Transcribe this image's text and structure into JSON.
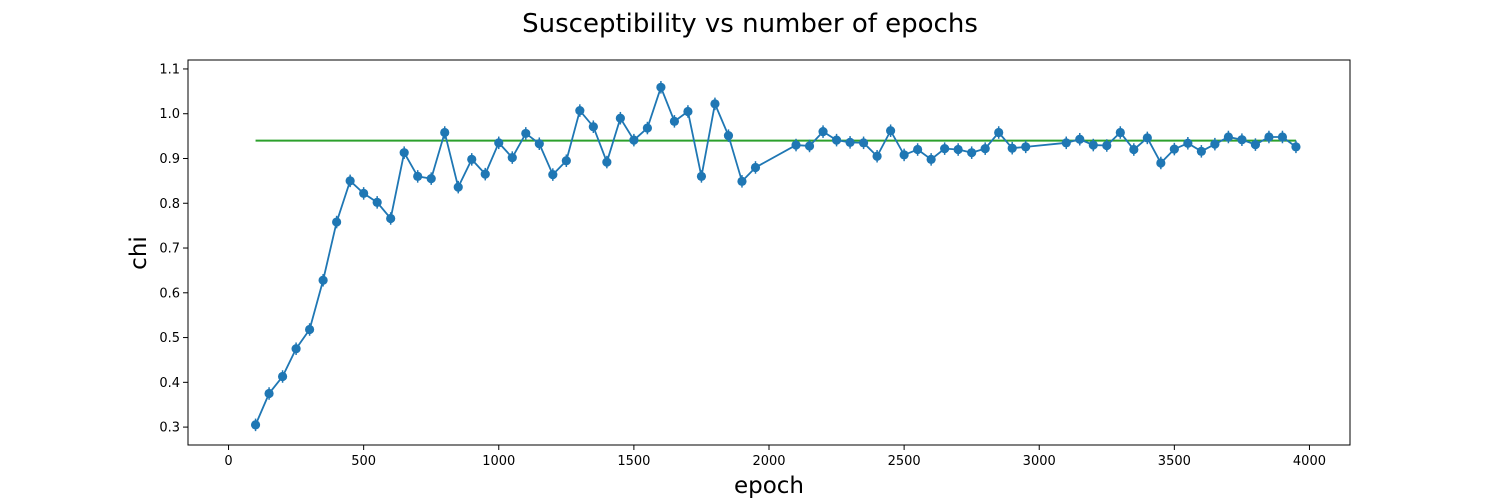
{
  "chart_data": {
    "type": "line",
    "title": "Susceptibility vs number of epochs",
    "xlabel": "epoch",
    "ylabel": "chi",
    "xlim": [
      -150,
      4150
    ],
    "ylim": [
      0.26,
      1.12
    ],
    "xticks": [
      0,
      500,
      1000,
      1500,
      2000,
      2500,
      3000,
      3500,
      4000
    ],
    "yticks": [
      0.3,
      0.4,
      0.5,
      0.6,
      0.7,
      0.8,
      0.9,
      1.0,
      1.1
    ],
    "xtick_labels": [
      "0",
      "500",
      "1000",
      "1500",
      "2000",
      "2500",
      "3000",
      "3500",
      "4000"
    ],
    "ytick_labels": [
      "0.3",
      "0.4",
      "0.5",
      "0.6",
      "0.7",
      "0.8",
      "0.9",
      "1.0",
      "1.1"
    ],
    "grid": false,
    "legend": "none",
    "colors": {
      "series": "#1f77b4",
      "reference": "#2ca02c"
    },
    "series": [
      {
        "x": [
          100,
          150,
          200,
          250,
          300,
          350,
          400,
          450,
          500,
          550,
          600,
          650,
          700,
          750,
          800,
          850,
          900,
          950,
          1000,
          1050,
          1100,
          1150,
          1200,
          1250,
          1300,
          1350,
          1400,
          1450,
          1500,
          1550,
          1600,
          1650,
          1700,
          1750,
          1800,
          1850,
          1900,
          1950,
          2100,
          2150,
          2200,
          2250,
          2300,
          2350,
          2400,
          2450,
          2500,
          2550,
          2600,
          2650,
          2700,
          2750,
          2800,
          2850,
          2900,
          2950,
          3100,
          3150,
          3200,
          3250,
          3300,
          3350,
          3400,
          3450,
          3500,
          3550,
          3600,
          3650,
          3700,
          3750,
          3800,
          3850,
          3900,
          3950
        ],
        "y": [
          0.305,
          0.375,
          0.413,
          0.475,
          0.518,
          0.628,
          0.758,
          0.85,
          0.822,
          0.802,
          0.766,
          0.913,
          0.86,
          0.855,
          0.958,
          0.836,
          0.898,
          0.865,
          0.935,
          0.902,
          0.956,
          0.933,
          0.864,
          0.895,
          1.007,
          0.971,
          0.892,
          0.99,
          0.941,
          0.968,
          1.059,
          0.983,
          1.005,
          0.86,
          1.022,
          0.951,
          0.849,
          0.88,
          0.93,
          0.928,
          0.96,
          0.941,
          0.936,
          0.935,
          0.905,
          0.962,
          0.908,
          0.92,
          0.898,
          0.922,
          0.92,
          0.913,
          0.922,
          0.958,
          0.923,
          0.926,
          0.935,
          0.943,
          0.93,
          0.929,
          0.958,
          0.92,
          0.946,
          0.89,
          0.921,
          0.934,
          0.916,
          0.932,
          0.948,
          0.942,
          0.931,
          0.948,
          0.948,
          0.926
        ],
        "yerr": 0.014
      }
    ],
    "reference_line": {
      "y": 0.94,
      "x_start": 100,
      "x_end": 3950
    }
  }
}
